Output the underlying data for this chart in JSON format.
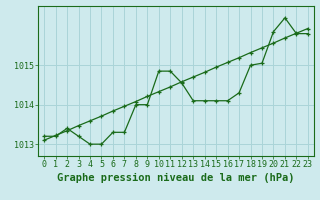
{
  "title": "Graphe pression niveau de la mer (hPa)",
  "background_color": "#ceeaed",
  "grid_color": "#aad4d8",
  "line_color": "#1a6b1a",
  "x_labels": [
    "0",
    "1",
    "2",
    "3",
    "4",
    "5",
    "6",
    "7",
    "8",
    "9",
    "10",
    "11",
    "12",
    "13",
    "14",
    "15",
    "16",
    "17",
    "18",
    "19",
    "20",
    "21",
    "22",
    "23"
  ],
  "pressure_data": [
    1013.2,
    1013.2,
    1013.4,
    1013.2,
    1013.0,
    1013.0,
    1013.3,
    1013.3,
    1014.0,
    1014.0,
    1014.85,
    1014.85,
    1014.55,
    1014.1,
    1014.1,
    1014.1,
    1014.1,
    1014.3,
    1015.0,
    1015.05,
    1015.85,
    1016.2,
    1015.8,
    1015.8
  ],
  "trend_data": [
    1013.1,
    1013.22,
    1013.34,
    1013.47,
    1013.59,
    1013.71,
    1013.84,
    1013.96,
    1014.08,
    1014.21,
    1014.33,
    1014.45,
    1014.58,
    1014.7,
    1014.82,
    1014.95,
    1015.07,
    1015.19,
    1015.32,
    1015.44,
    1015.56,
    1015.69,
    1015.81,
    1015.93
  ],
  "ylim": [
    1012.7,
    1016.5
  ],
  "yticks": [
    1013,
    1014,
    1015
  ],
  "xlim": [
    -0.5,
    23.5
  ],
  "title_fontsize": 7.5,
  "tick_fontsize": 6.0
}
